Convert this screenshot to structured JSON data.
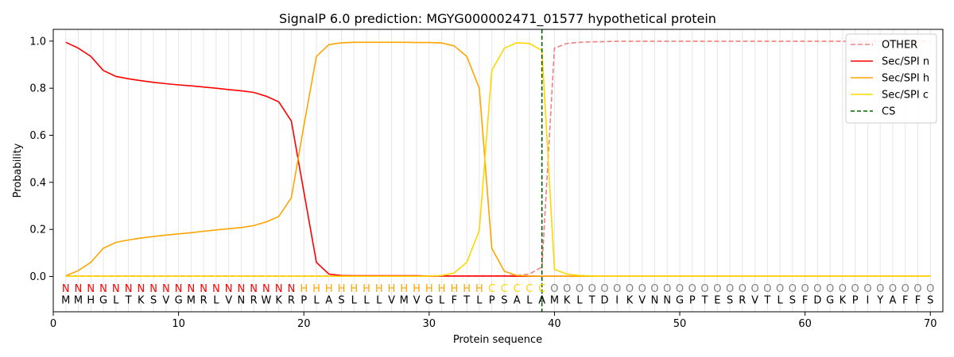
{
  "chart_data": {
    "type": "line",
    "title": "SignalP 6.0 prediction: MGYG000002471_01577 hypothetical protein",
    "xlabel": "Protein sequence",
    "ylabel": "Probability",
    "xlim": [
      0,
      71
    ],
    "ylim": [
      -0.15,
      1.05
    ],
    "xticks": [
      0,
      10,
      20,
      30,
      40,
      50,
      60,
      70
    ],
    "yticks": [
      0.0,
      0.2,
      0.4,
      0.6,
      0.8,
      1.0
    ],
    "ytick_labels": [
      "0.0",
      "0.2",
      "0.4",
      "0.6",
      "0.8",
      "1.0"
    ],
    "grid": "vertical lines at each residue",
    "legend_position": "top-right",
    "sequence": [
      "M",
      "M",
      "H",
      "G",
      "L",
      "T",
      "K",
      "S",
      "V",
      "G",
      "M",
      "R",
      "L",
      "V",
      "N",
      "R",
      "W",
      "K",
      "R",
      "P",
      "L",
      "A",
      "S",
      "L",
      "L",
      "L",
      "V",
      "M",
      "V",
      "G",
      "L",
      "F",
      "T",
      "L",
      "P",
      "S",
      "A",
      "L",
      "A",
      "M",
      "K",
      "L",
      "T",
      "D",
      "I",
      "K",
      "V",
      "N",
      "N",
      "G",
      "P",
      "T",
      "E",
      "S",
      "R",
      "V",
      "T",
      "L",
      "S",
      "F",
      "D",
      "G",
      "K",
      "P",
      "I",
      "Y",
      "A",
      "F",
      "F",
      "S"
    ],
    "region_labels": [
      "N",
      "N",
      "N",
      "N",
      "N",
      "N",
      "N",
      "N",
      "N",
      "N",
      "N",
      "N",
      "N",
      "N",
      "N",
      "N",
      "N",
      "N",
      "N",
      "H",
      "H",
      "H",
      "H",
      "H",
      "H",
      "H",
      "H",
      "H",
      "H",
      "H",
      "H",
      "H",
      "H",
      "H",
      "C",
      "C",
      "C",
      "C",
      "C",
      "O",
      "O",
      "O",
      "O",
      "O",
      "O",
      "O",
      "O",
      "O",
      "O",
      "O",
      "O",
      "O",
      "O",
      "O",
      "O",
      "O",
      "O",
      "O",
      "O",
      "O",
      "O",
      "O",
      "O",
      "O",
      "O",
      "O",
      "O",
      "O",
      "O",
      "O"
    ],
    "region_colors": {
      "N": "#ff0000",
      "H": "#ffa500",
      "C": "#ffd700",
      "O": "#808080"
    },
    "x": [
      1,
      2,
      3,
      4,
      5,
      6,
      7,
      8,
      9,
      10,
      11,
      12,
      13,
      14,
      15,
      16,
      17,
      18,
      19,
      20,
      21,
      22,
      23,
      24,
      25,
      26,
      27,
      28,
      29,
      30,
      31,
      32,
      33,
      34,
      35,
      36,
      37,
      38,
      39,
      40,
      41,
      42,
      43,
      44,
      45,
      46,
      47,
      48,
      49,
      50,
      51,
      52,
      53,
      54,
      55,
      56,
      57,
      58,
      59,
      60,
      61,
      62,
      63,
      64,
      65,
      66,
      67,
      68,
      69,
      70
    ],
    "series": [
      {
        "name": "OTHER",
        "color": "#f08080",
        "dash": true,
        "values": [
          0.002,
          0.002,
          0.002,
          0.002,
          0.002,
          0.002,
          0.002,
          0.002,
          0.002,
          0.002,
          0.002,
          0.002,
          0.002,
          0.002,
          0.002,
          0.002,
          0.002,
          0.002,
          0.002,
          0.002,
          0.002,
          0.002,
          0.002,
          0.002,
          0.002,
          0.002,
          0.002,
          0.002,
          0.002,
          0.002,
          0.002,
          0.002,
          0.002,
          0.002,
          0.002,
          0.003,
          0.004,
          0.01,
          0.04,
          0.97,
          0.99,
          0.995,
          0.997,
          0.998,
          0.999,
          0.999,
          0.999,
          0.999,
          0.999,
          0.999,
          0.999,
          0.999,
          0.999,
          0.999,
          0.999,
          0.999,
          0.999,
          0.999,
          0.999,
          0.999,
          0.999,
          0.999,
          0.999,
          0.999,
          0.999,
          0.999,
          0.999,
          0.999,
          0.999,
          0.999
        ]
      },
      {
        "name": "Sec/SPI n",
        "color": "#ff0000",
        "dash": false,
        "values": [
          0.995,
          0.97,
          0.935,
          0.875,
          0.85,
          0.84,
          0.832,
          0.825,
          0.819,
          0.814,
          0.81,
          0.805,
          0.8,
          0.794,
          0.789,
          0.782,
          0.766,
          0.742,
          0.66,
          0.36,
          0.06,
          0.01,
          0.004,
          0.003,
          0.003,
          0.003,
          0.003,
          0.003,
          0.003,
          0.002,
          0.002,
          0.002,
          0.002,
          0.002,
          0.002,
          0.002,
          0.001,
          0.001,
          0.001,
          0.001,
          0.001,
          0.001,
          0.001,
          0.001,
          0.001,
          0.001,
          0.001,
          0.001,
          0.001,
          0.001,
          0.001,
          0.001,
          0.001,
          0.001,
          0.001,
          0.001,
          0.001,
          0.001,
          0.001,
          0.001,
          0.001,
          0.001,
          0.001,
          0.001,
          0.001,
          0.001,
          0.001,
          0.001,
          0.001,
          0.001
        ]
      },
      {
        "name": "Sec/SPI h",
        "color": "#ffa500",
        "dash": false,
        "values": [
          0.003,
          0.025,
          0.06,
          0.12,
          0.145,
          0.155,
          0.163,
          0.17,
          0.176,
          0.181,
          0.186,
          0.192,
          0.198,
          0.203,
          0.208,
          0.216,
          0.232,
          0.255,
          0.335,
          0.64,
          0.935,
          0.985,
          0.993,
          0.995,
          0.995,
          0.995,
          0.995,
          0.995,
          0.994,
          0.994,
          0.992,
          0.98,
          0.935,
          0.8,
          0.12,
          0.022,
          0.004,
          0.002,
          0.001,
          0.001,
          0.001,
          0.001,
          0.001,
          0.001,
          0.001,
          0.001,
          0.001,
          0.001,
          0.001,
          0.001,
          0.001,
          0.001,
          0.001,
          0.001,
          0.001,
          0.001,
          0.001,
          0.001,
          0.001,
          0.001,
          0.001,
          0.001,
          0.001,
          0.001,
          0.001,
          0.001,
          0.001,
          0.001,
          0.001,
          0.001
        ]
      },
      {
        "name": "Sec/SPI c",
        "color": "#ffd700",
        "dash": false,
        "values": [
          0.001,
          0.001,
          0.001,
          0.001,
          0.001,
          0.001,
          0.001,
          0.001,
          0.001,
          0.001,
          0.001,
          0.001,
          0.001,
          0.001,
          0.001,
          0.001,
          0.001,
          0.001,
          0.001,
          0.001,
          0.001,
          0.001,
          0.001,
          0.001,
          0.001,
          0.001,
          0.001,
          0.001,
          0.001,
          0.002,
          0.004,
          0.015,
          0.06,
          0.195,
          0.875,
          0.97,
          0.993,
          0.99,
          0.96,
          0.03,
          0.01,
          0.004,
          0.002,
          0.001,
          0.001,
          0.001,
          0.001,
          0.001,
          0.001,
          0.001,
          0.001,
          0.001,
          0.001,
          0.001,
          0.001,
          0.001,
          0.001,
          0.001,
          0.001,
          0.001,
          0.001,
          0.001,
          0.001,
          0.001,
          0.001,
          0.001,
          0.001,
          0.001,
          0.001,
          0.001
        ]
      }
    ],
    "cs_marker": {
      "name": "CS",
      "x": 39,
      "color": "#006400"
    }
  }
}
